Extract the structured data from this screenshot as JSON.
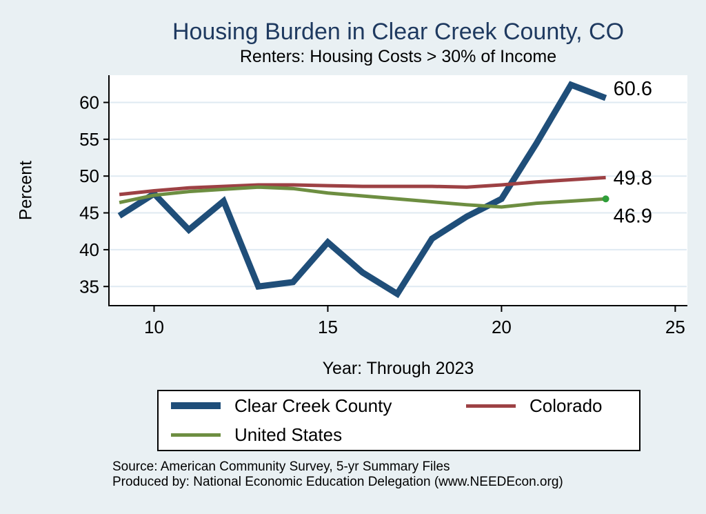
{
  "chart": {
    "title": "Housing Burden in Clear Creek County, CO",
    "subtitle": "Renters: Housing Costs > 30% of Income"
  },
  "chart_data": {
    "type": "line",
    "title": "Housing Burden in Clear Creek County, CO",
    "subtitle": "Renters: Housing Costs > 30% of Income",
    "xlabel": "Year: Through 2023",
    "ylabel": "Percent",
    "x": [
      9,
      10,
      11,
      12,
      13,
      14,
      15,
      16,
      17,
      18,
      19,
      20,
      21,
      22,
      23
    ],
    "series": [
      {
        "name": "Clear Creek County",
        "color": "#1f4e79",
        "line_width": 9,
        "values": [
          44.6,
          47.6,
          42.7,
          46.6,
          35.0,
          35.6,
          41.0,
          36.9,
          34.0,
          41.5,
          44.5,
          46.9,
          54.4,
          62.4,
          60.6
        ],
        "end_label": "60.6"
      },
      {
        "name": "Colorado",
        "color": "#9d4144",
        "line_width": 5,
        "values": [
          47.5,
          48.0,
          48.4,
          48.6,
          48.8,
          48.8,
          48.7,
          48.6,
          48.6,
          48.6,
          48.5,
          48.8,
          49.2,
          49.5,
          49.8
        ],
        "end_label": "49.8"
      },
      {
        "name": "United States",
        "color": "#6d8e41",
        "line_width": 5,
        "values": [
          46.4,
          47.4,
          47.9,
          48.2,
          48.5,
          48.3,
          47.7,
          47.3,
          46.9,
          46.5,
          46.1,
          45.8,
          46.3,
          46.6,
          46.9
        ],
        "end_label": "46.9",
        "end_dot_color": "#2f9e39"
      }
    ],
    "xticks": [
      "10",
      "15",
      "20",
      "25"
    ],
    "xtick_values": [
      10,
      15,
      20,
      25
    ],
    "yticks": [
      "35",
      "40",
      "45",
      "50",
      "55",
      "60"
    ],
    "ytick_values": [
      35,
      40,
      45,
      50,
      55,
      60
    ],
    "xlim": [
      8.7,
      25.35
    ],
    "ylim": [
      32.4,
      63.7
    ],
    "grid": true,
    "legend_position": "bottom"
  },
  "footer": {
    "source": "Source: American Community Survey, 5-yr Summary Files",
    "produced_by": "Produced by: National Economic Education Delegation (www.NEEDEcon.org)"
  },
  "colors": {
    "background": "#e9f0f3",
    "plot_background": "#ffffff",
    "title": "#1f3a60",
    "gridline": "#dfeaf2",
    "axis": "#000000",
    "end_label_text": "#000000"
  }
}
